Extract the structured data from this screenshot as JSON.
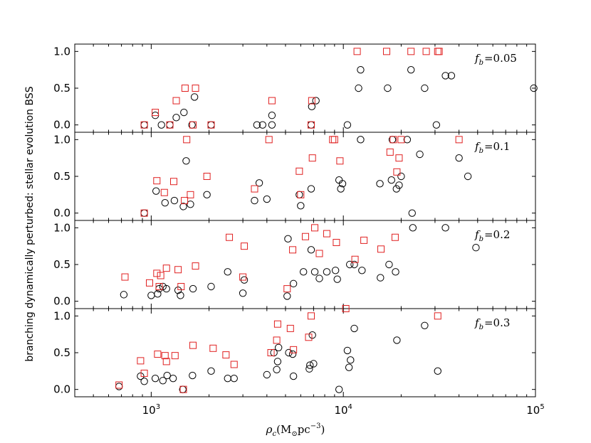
{
  "chart_data": {
    "type": "scatter",
    "xscale": "log",
    "xlim": [
      400,
      100000
    ],
    "ylim": [
      -0.1,
      1.1
    ],
    "grid": false,
    "ylabel": "branching dynamically perturbed: stellar evolution BSS",
    "xlabel": {
      "main": "ρ",
      "sub": "c",
      "unit_open": "(M",
      "unit_sub": "⊙",
      "unit_mid": "pc",
      "unit_sup": "−3",
      "unit_close": ")"
    },
    "xticks": [
      {
        "value": 1000,
        "base": "10",
        "exp": "3"
      },
      {
        "value": 10000,
        "base": "10",
        "exp": "4"
      },
      {
        "value": 100000,
        "base": "10",
        "exp": "5"
      }
    ],
    "yticks": [
      {
        "value": 0.0,
        "label": "0.0"
      },
      {
        "value": 0.5,
        "label": "0.5"
      },
      {
        "value": 1.0,
        "label": "1.0"
      }
    ],
    "colors": {
      "circles": "#000000",
      "squares": "#e02020"
    },
    "panels": [
      {
        "label_var": "f",
        "label_sub": "b",
        "label_val": "=0.05",
        "circles": [
          [
            920,
            0
          ],
          [
            1050,
            0.13
          ],
          [
            1130,
            0
          ],
          [
            1250,
            0
          ],
          [
            1350,
            0.1
          ],
          [
            1480,
            0.17
          ],
          [
            1630,
            0
          ],
          [
            1680,
            0.38
          ],
          [
            2050,
            0
          ],
          [
            3550,
            0
          ],
          [
            3800,
            0
          ],
          [
            4250,
            0
          ],
          [
            4250,
            0.13
          ],
          [
            6800,
            0
          ],
          [
            6850,
            0.25
          ],
          [
            7200,
            0.33
          ],
          [
            10500,
            0
          ],
          [
            12000,
            0.5
          ],
          [
            12300,
            0.75
          ],
          [
            17000,
            0.5
          ],
          [
            22500,
            0.75
          ],
          [
            26500,
            0.5
          ],
          [
            30500,
            0
          ],
          [
            34000,
            0.67
          ],
          [
            36500,
            0.67
          ],
          [
            98000,
            0.5
          ]
        ],
        "squares": [
          [
            920,
            0
          ],
          [
            1050,
            0.17
          ],
          [
            1250,
            0
          ],
          [
            1350,
            0.33
          ],
          [
            1500,
            0.5
          ],
          [
            1650,
            0
          ],
          [
            1700,
            0.5
          ],
          [
            2050,
            0
          ],
          [
            4250,
            0.33
          ],
          [
            6800,
            0
          ],
          [
            6850,
            0.33
          ],
          [
            11800,
            1.0
          ],
          [
            16800,
            1.0
          ],
          [
            22500,
            1.0
          ],
          [
            27000,
            1.0
          ],
          [
            31000,
            1.0
          ],
          [
            31500,
            1.0
          ]
        ]
      },
      {
        "label_var": "f",
        "label_sub": "b",
        "label_val": "=0.1",
        "circles": [
          [
            920,
            0
          ],
          [
            1060,
            0.3
          ],
          [
            1180,
            0.14
          ],
          [
            1320,
            0.17
          ],
          [
            1470,
            0.09
          ],
          [
            1520,
            0.71
          ],
          [
            1600,
            0.12
          ],
          [
            1950,
            0.25
          ],
          [
            3450,
            0.17
          ],
          [
            3650,
            0.41
          ],
          [
            4000,
            0.19
          ],
          [
            5900,
            0.25
          ],
          [
            6000,
            0.1
          ],
          [
            6800,
            0.33
          ],
          [
            9500,
            0.45
          ],
          [
            9700,
            0.33
          ],
          [
            9900,
            0.4
          ],
          [
            12300,
            1.0
          ],
          [
            15500,
            0.4
          ],
          [
            17800,
            0.45
          ],
          [
            18000,
            1.0
          ],
          [
            18900,
            0.33
          ],
          [
            19500,
            0.38
          ],
          [
            20000,
            0.5
          ],
          [
            21500,
            1.0
          ],
          [
            22800,
            0
          ],
          [
            25000,
            0.8
          ],
          [
            40000,
            0.75
          ],
          [
            44500,
            0.5
          ]
        ],
        "squares": [
          [
            920,
            0
          ],
          [
            1070,
            0.44
          ],
          [
            1170,
            0.28
          ],
          [
            1310,
            0.43
          ],
          [
            1490,
            0.17
          ],
          [
            1530,
            1.0
          ],
          [
            1600,
            0.25
          ],
          [
            1950,
            0.5
          ],
          [
            3450,
            0.33
          ],
          [
            4100,
            1.0
          ],
          [
            5900,
            0.57
          ],
          [
            6000,
            0.25
          ],
          [
            6900,
            0.75
          ],
          [
            8800,
            1.0
          ],
          [
            9000,
            1.0
          ],
          [
            9600,
            0.71
          ],
          [
            17500,
            0.83
          ],
          [
            18200,
            1.0
          ],
          [
            19000,
            0.56
          ],
          [
            19500,
            0.75
          ],
          [
            20000,
            1.0
          ],
          [
            40000,
            1.0
          ]
        ]
      },
      {
        "label_var": "f",
        "label_sub": "b",
        "label_val": "=0.2",
        "circles": [
          [
            720,
            0.09
          ],
          [
            1000,
            0.08
          ],
          [
            1080,
            0.1
          ],
          [
            1100,
            0.17
          ],
          [
            1150,
            0.2
          ],
          [
            1200,
            0.17
          ],
          [
            1380,
            0.15
          ],
          [
            1420,
            0.08
          ],
          [
            1650,
            0.17
          ],
          [
            2050,
            0.2
          ],
          [
            2500,
            0.4
          ],
          [
            3000,
            0.11
          ],
          [
            3050,
            0.29
          ],
          [
            5100,
            0.07
          ],
          [
            5150,
            0.85
          ],
          [
            5500,
            0.24
          ],
          [
            6200,
            0.4
          ],
          [
            6800,
            0.7
          ],
          [
            7100,
            0.4
          ],
          [
            7500,
            0.31
          ],
          [
            8200,
            0.4
          ],
          [
            9100,
            0.42
          ],
          [
            9300,
            0.3
          ],
          [
            10800,
            0.5
          ],
          [
            11400,
            0.5
          ],
          [
            12500,
            0.42
          ],
          [
            15600,
            0.32
          ],
          [
            17300,
            0.5
          ],
          [
            18700,
            0.4
          ],
          [
            23000,
            1.0
          ],
          [
            34000,
            1.0
          ],
          [
            49000,
            0.73
          ]
        ],
        "squares": [
          [
            730,
            0.33
          ],
          [
            980,
            0.25
          ],
          [
            1070,
            0.38
          ],
          [
            1100,
            0.2
          ],
          [
            1120,
            0.35
          ],
          [
            1200,
            0.45
          ],
          [
            1380,
            0.43
          ],
          [
            1430,
            0.2
          ],
          [
            1700,
            0.48
          ],
          [
            2550,
            0.87
          ],
          [
            3000,
            0.33
          ],
          [
            3050,
            0.75
          ],
          [
            5100,
            0.17
          ],
          [
            5450,
            0.7
          ],
          [
            6350,
            0.88
          ],
          [
            7100,
            1.0
          ],
          [
            7500,
            0.65
          ],
          [
            8200,
            0.92
          ],
          [
            9200,
            0.8
          ],
          [
            11500,
            0.57
          ],
          [
            12800,
            0.83
          ],
          [
            15700,
            0.71
          ],
          [
            18600,
            0.87
          ]
        ]
      },
      {
        "label_var": "f",
        "label_sub": "b",
        "label_val": "=0.3",
        "circles": [
          [
            680,
            0.04
          ],
          [
            880,
            0.18
          ],
          [
            920,
            0.11
          ],
          [
            1050,
            0.15
          ],
          [
            1150,
            0.12
          ],
          [
            1210,
            0.19
          ],
          [
            1300,
            0.15
          ],
          [
            1460,
            0
          ],
          [
            1640,
            0.19
          ],
          [
            2050,
            0.25
          ],
          [
            2500,
            0.15
          ],
          [
            2700,
            0.15
          ],
          [
            4000,
            0.2
          ],
          [
            4350,
            0.5
          ],
          [
            4500,
            0.27
          ],
          [
            4550,
            0.38
          ],
          [
            4600,
            0.57
          ],
          [
            5200,
            0.5
          ],
          [
            5450,
            0.48
          ],
          [
            5500,
            0.18
          ],
          [
            6650,
            0.28
          ],
          [
            6700,
            0.33
          ],
          [
            6900,
            0.74
          ],
          [
            7000,
            0.35
          ],
          [
            9500,
            0
          ],
          [
            10500,
            0.53
          ],
          [
            10700,
            0.3
          ],
          [
            10900,
            0.4
          ],
          [
            11400,
            0.83
          ],
          [
            19000,
            0.67
          ],
          [
            26500,
            0.87
          ],
          [
            31000,
            0.25
          ]
        ],
        "squares": [
          [
            680,
            0.06
          ],
          [
            880,
            0.39
          ],
          [
            920,
            0.22
          ],
          [
            1080,
            0.48
          ],
          [
            1180,
            0.46
          ],
          [
            1200,
            0.38
          ],
          [
            1330,
            0.46
          ],
          [
            1470,
            0
          ],
          [
            1650,
            0.6
          ],
          [
            2100,
            0.56
          ],
          [
            2450,
            0.47
          ],
          [
            2700,
            0.34
          ],
          [
            4200,
            0.5
          ],
          [
            4500,
            0.67
          ],
          [
            4550,
            0.89
          ],
          [
            5300,
            0.83
          ],
          [
            5500,
            0.54
          ],
          [
            6600,
            0.71
          ],
          [
            6800,
            1.0
          ],
          [
            10300,
            1.1
          ],
          [
            31000,
            1.0
          ]
        ]
      }
    ]
  }
}
